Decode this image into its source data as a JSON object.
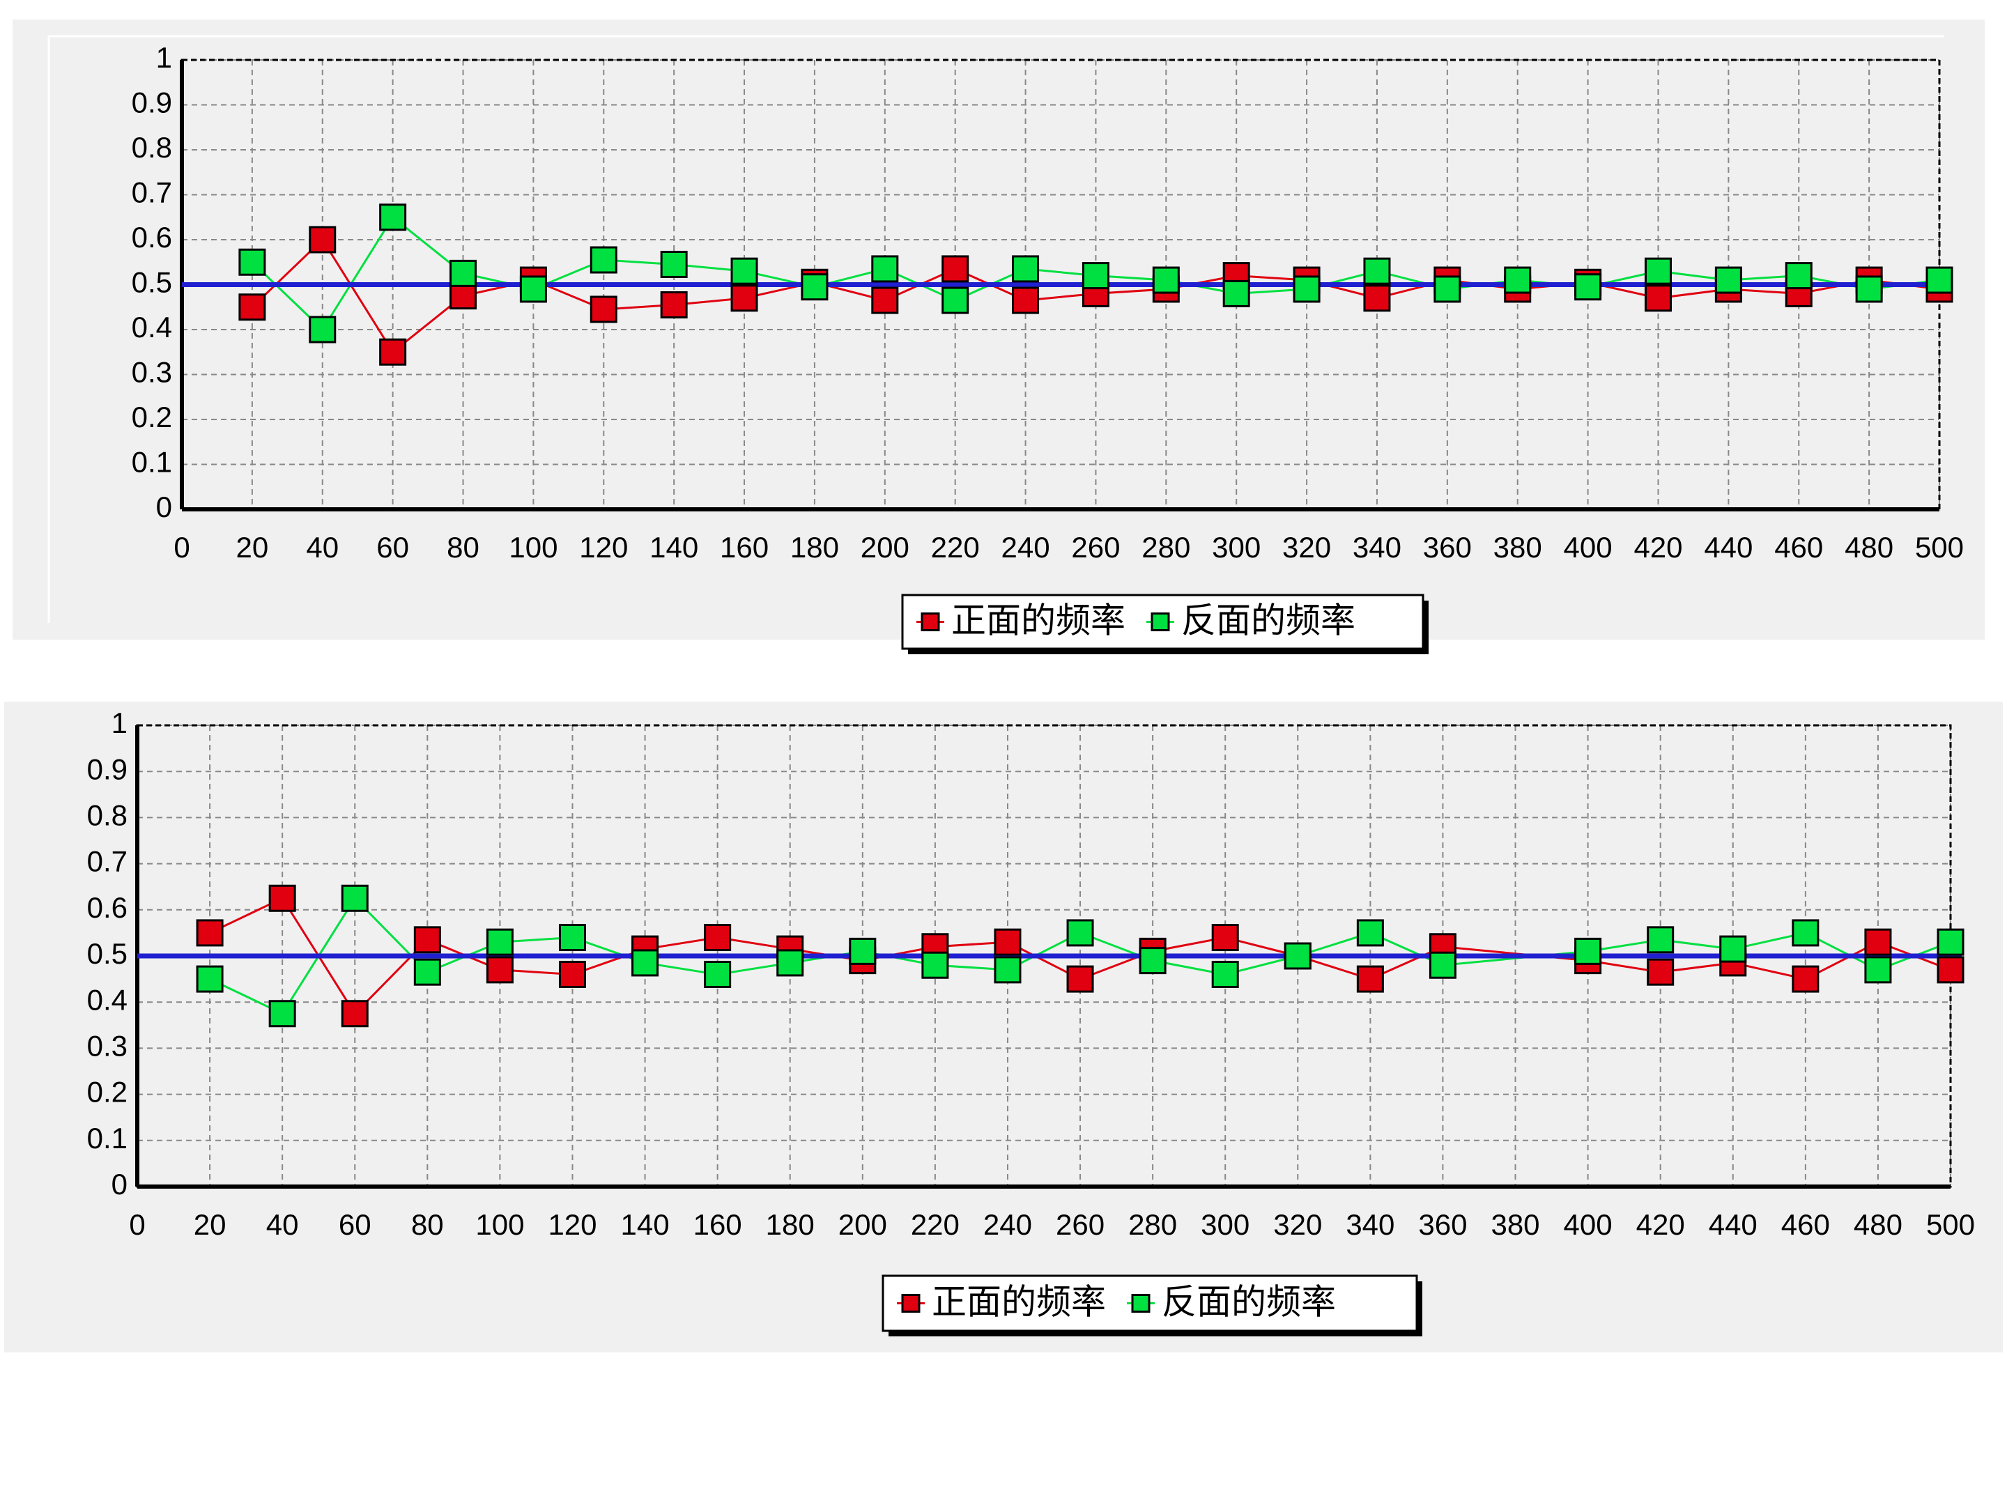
{
  "chart_data": [
    {
      "type": "line",
      "x": [
        20,
        40,
        60,
        80,
        100,
        120,
        140,
        160,
        180,
        200,
        220,
        240,
        260,
        280,
        300,
        320,
        340,
        360,
        380,
        400,
        420,
        440,
        460,
        480,
        500
      ],
      "series": [
        {
          "name": "正面的频率",
          "color": "#e00010",
          "values": [
            0.45,
            0.6,
            0.35,
            0.475,
            0.51,
            0.445,
            0.455,
            0.47,
            0.505,
            0.465,
            0.535,
            0.465,
            0.48,
            0.49,
            0.52,
            0.51,
            0.47,
            0.51,
            0.49,
            0.505,
            0.47,
            0.49,
            0.48,
            0.51,
            0.49
          ]
        },
        {
          "name": "反面的频率",
          "color": "#00e040",
          "values": [
            0.55,
            0.4,
            0.65,
            0.525,
            0.49,
            0.555,
            0.545,
            0.53,
            0.495,
            0.535,
            0.465,
            0.535,
            0.52,
            0.51,
            0.48,
            0.49,
            0.53,
            0.49,
            0.51,
            0.495,
            0.53,
            0.51,
            0.52,
            0.49,
            0.51
          ]
        }
      ],
      "reference_value": 0.5,
      "reference_color": "#2020d0",
      "xlim": [
        0,
        500
      ],
      "xticks": [
        0,
        20,
        40,
        60,
        80,
        100,
        120,
        140,
        160,
        180,
        200,
        220,
        240,
        260,
        280,
        300,
        320,
        340,
        360,
        380,
        400,
        420,
        440,
        460,
        480,
        500
      ],
      "ylim": [
        0,
        1
      ],
      "yticks": [
        0,
        0.1,
        0.2,
        0.3,
        0.4,
        0.5,
        0.6,
        0.7,
        0.8,
        0.9,
        1
      ],
      "grid": true,
      "legend": "bottom"
    },
    {
      "type": "line",
      "x": [
        20,
        40,
        60,
        80,
        100,
        120,
        140,
        160,
        180,
        200,
        220,
        240,
        260,
        280,
        300,
        320,
        340,
        360,
        400,
        420,
        440,
        460,
        480,
        500
      ],
      "series": [
        {
          "name": "正面的频率",
          "color": "#e00010",
          "values": [
            0.55,
            0.625,
            0.375,
            0.535,
            0.47,
            0.46,
            0.515,
            0.54,
            0.515,
            0.49,
            0.52,
            0.53,
            0.45,
            0.51,
            0.54,
            0.5,
            0.45,
            0.52,
            0.49,
            0.465,
            0.485,
            0.45,
            0.53,
            0.47
          ]
        },
        {
          "name": "反面的频率",
          "color": "#00e040",
          "values": [
            0.45,
            0.375,
            0.625,
            0.465,
            0.53,
            0.54,
            0.485,
            0.46,
            0.485,
            0.51,
            0.48,
            0.47,
            0.55,
            0.49,
            0.46,
            0.5,
            0.55,
            0.48,
            0.51,
            0.535,
            0.515,
            0.55,
            0.47,
            0.53
          ]
        }
      ],
      "reference_value": 0.5,
      "reference_color": "#2020d0",
      "xlim": [
        0,
        500
      ],
      "xticks": [
        0,
        20,
        40,
        60,
        80,
        100,
        120,
        140,
        160,
        180,
        200,
        220,
        240,
        260,
        280,
        300,
        320,
        340,
        360,
        380,
        400,
        420,
        440,
        460,
        480,
        500
      ],
      "ylim": [
        0,
        1
      ],
      "yticks": [
        0,
        0.1,
        0.2,
        0.3,
        0.4,
        0.5,
        0.6,
        0.7,
        0.8,
        0.9,
        1
      ],
      "grid": true,
      "legend": "bottom"
    }
  ]
}
